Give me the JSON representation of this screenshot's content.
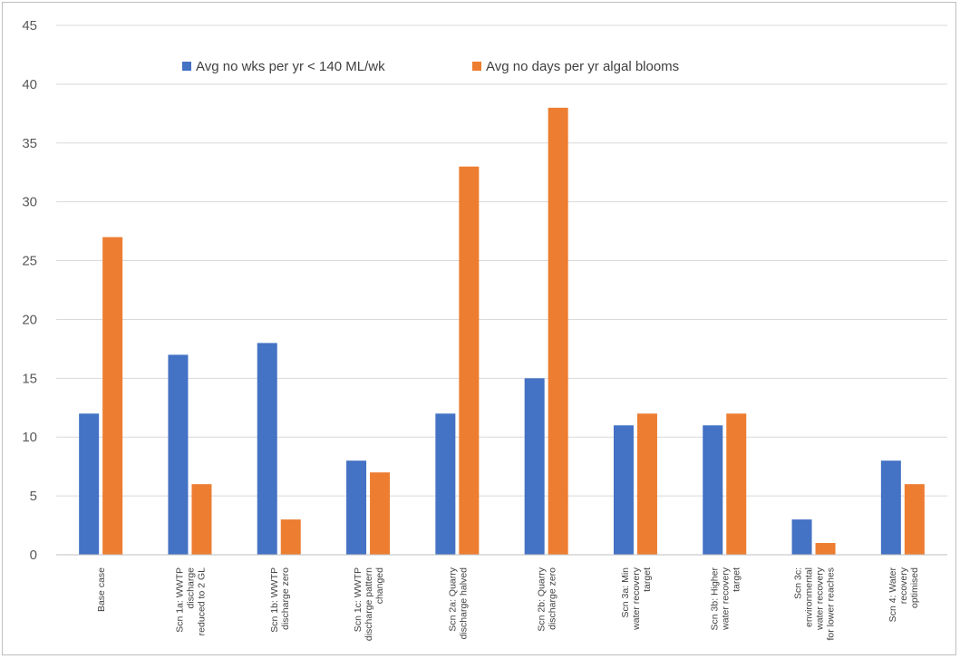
{
  "chart_data": {
    "type": "bar",
    "title": "",
    "xlabel": "",
    "ylabel": "",
    "ylim": [
      0,
      45
    ],
    "yticks": [
      0,
      5,
      10,
      15,
      20,
      25,
      30,
      35,
      40,
      45
    ],
    "grid": true,
    "legend_position": "top",
    "categories": [
      [
        "Base case"
      ],
      [
        "Scn 1a:  WWTP",
        "discharge",
        "reduced to 2 GL"
      ],
      [
        "Scn 1b:  WWTP",
        "discharge zero"
      ],
      [
        "Scn 1c:  WWTP",
        "discharge pattern",
        "changed"
      ],
      [
        "Scn 2a:  Quarry",
        "discharge halved"
      ],
      [
        "Scn 2b:  Quarry",
        "discharge zero"
      ],
      [
        "Scn 3a:  Min",
        "water recovery",
        "target"
      ],
      [
        "Scn 3b: Higher",
        "water recovery",
        "target"
      ],
      [
        "Scn 3c:",
        "environmental",
        "water recovery",
        "for lower reaches"
      ],
      [
        "Scn 4: Water",
        "recovery",
        "optimised"
      ]
    ],
    "series": [
      {
        "name": "Avg no wks per yr < 140 ML/wk",
        "color": "#4472c4",
        "values": [
          12,
          17,
          18,
          8,
          12,
          15,
          11,
          11,
          3,
          8
        ]
      },
      {
        "name": "Avg no days per yr algal blooms",
        "color": "#ed7d31",
        "values": [
          27,
          6,
          3,
          7,
          33,
          38,
          12,
          12,
          1,
          6
        ]
      }
    ]
  }
}
